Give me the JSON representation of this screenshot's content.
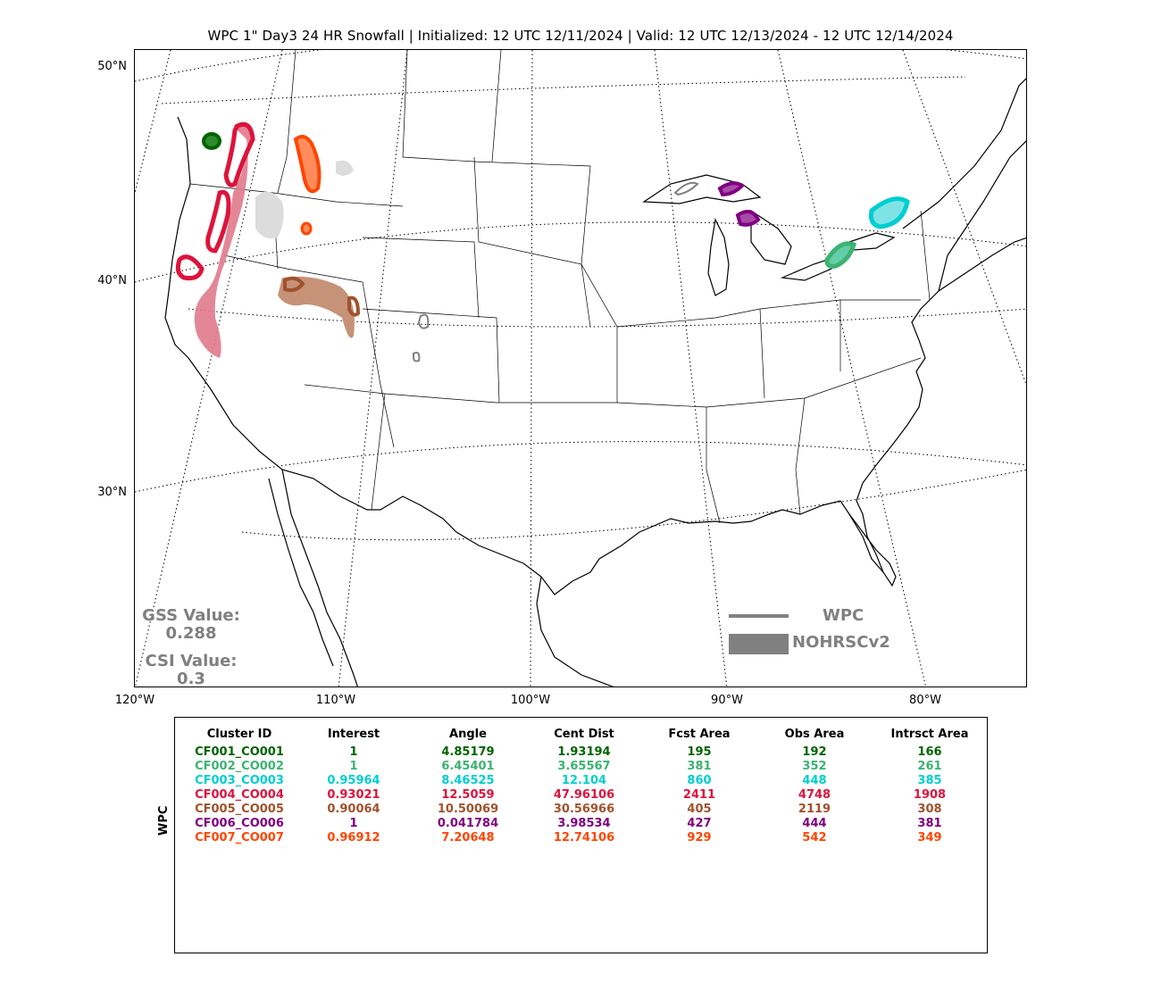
{
  "title": "WPC 1\" Day3 24 HR Snowfall | Initialized: 12 UTC 12/11/2024 | Valid: 12 UTC 12/13/2024 - 12 UTC 12/14/2024",
  "lat_labels": [
    "50°N",
    "40°N",
    "30°N"
  ],
  "lon_labels": [
    "120°W",
    "110°W",
    "100°W",
    "90°W",
    "80°W"
  ],
  "gss": {
    "label": "GSS Value:",
    "value": "0.288"
  },
  "csi": {
    "label": "CSI Value:",
    "value": "0.3"
  },
  "legend": {
    "line_label": "WPC",
    "patch_label": "NOHRSCv2",
    "color": "#808080"
  },
  "table": {
    "ylabel": "WPC",
    "headers": [
      "Cluster ID",
      "Interest",
      "Angle",
      "Cent Dist",
      "Fcst Area",
      "Obs Area",
      "Intrsct Area"
    ],
    "rows": [
      {
        "color": "#006400",
        "cells": [
          "CF001_CO001",
          "1",
          "4.85179",
          "1.93194",
          "195",
          "192",
          "166"
        ]
      },
      {
        "color": "#3cb371",
        "cells": [
          "CF002_CO002",
          "1",
          "6.45401",
          "3.65567",
          "381",
          "352",
          "261"
        ]
      },
      {
        "color": "#00ced1",
        "cells": [
          "CF003_CO003",
          "0.95964",
          "8.46525",
          "12.104",
          "860",
          "448",
          "385"
        ]
      },
      {
        "color": "#dc143c",
        "cells": [
          "CF004_CO004",
          "0.93021",
          "12.5059",
          "47.96106",
          "2411",
          "4748",
          "1908"
        ]
      },
      {
        "color": "#a0522d",
        "cells": [
          "CF005_CO005",
          "0.90064",
          "10.50069",
          "30.56966",
          "405",
          "2119",
          "308"
        ]
      },
      {
        "color": "#800080",
        "cells": [
          "CF006_CO006",
          "1",
          "0.041784",
          "3.98534",
          "427",
          "444",
          "381"
        ]
      },
      {
        "color": "#ff4500",
        "cells": [
          "CF007_CO007",
          "0.96912",
          "7.20648",
          "12.74106",
          "929",
          "542",
          "349"
        ]
      }
    ]
  },
  "clusters": [
    {
      "id": "CF001_CO001",
      "color": "#006400",
      "fill": "#2e8b2e"
    },
    {
      "id": "CF002_CO002",
      "color": "#3cb371",
      "fill": "#66cdaa"
    },
    {
      "id": "CF003_CO003",
      "color": "#00ced1",
      "fill": "#7fe3e5"
    },
    {
      "id": "CF004_CO004",
      "color": "#dc143c",
      "fill": "#e07a8c"
    },
    {
      "id": "CF005_CO005",
      "color": "#a0522d",
      "fill": "#c69278"
    },
    {
      "id": "CF006_CO006",
      "color": "#800080",
      "fill": "#a64ca6"
    },
    {
      "id": "CF007_CO007",
      "color": "#ff4500",
      "fill": "#ff8c5a"
    }
  ],
  "unmatched_obs_color": "#dcdcdc"
}
